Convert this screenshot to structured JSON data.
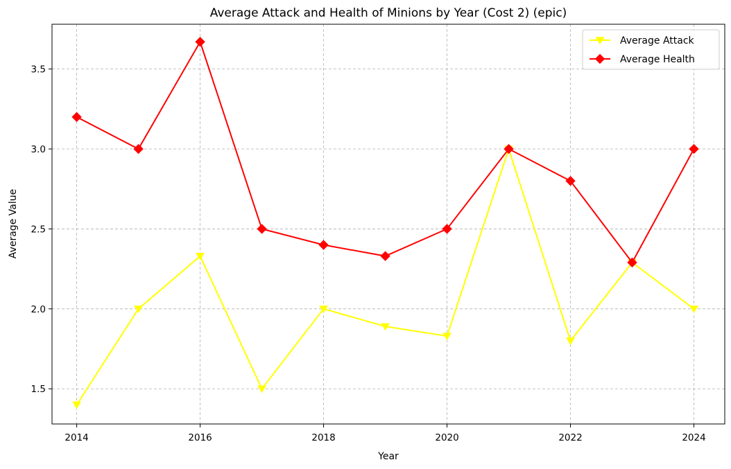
{
  "chart_data": {
    "type": "line",
    "title": "Average Attack and Health of Minions by Year (Cost 2) (epic)",
    "xlabel": "Year",
    "ylabel": "Average Value",
    "x": [
      2014,
      2015,
      2016,
      2017,
      2018,
      2019,
      2020,
      2021,
      2022,
      2023,
      2024
    ],
    "xlim": [
      2013.6,
      2024.5
    ],
    "ylim": [
      1.28,
      3.78
    ],
    "xticks": [
      2014,
      2016,
      2018,
      2020,
      2022,
      2024
    ],
    "yticks": [
      1.5,
      2.0,
      2.5,
      3.0,
      3.5
    ],
    "grid": true,
    "legend_position": "top-right",
    "series": [
      {
        "name": "Average Attack",
        "color": "#ffff00",
        "marker": "triangle-down",
        "values": [
          1.4,
          2.0,
          2.33,
          1.5,
          2.0,
          1.89,
          1.83,
          3.0,
          1.8,
          2.29,
          2.0
        ]
      },
      {
        "name": "Average Health",
        "color": "#ff0000",
        "marker": "diamond",
        "values": [
          3.2,
          3.0,
          3.67,
          2.5,
          2.4,
          2.33,
          2.5,
          3.0,
          2.8,
          2.29,
          3.0
        ]
      }
    ]
  }
}
